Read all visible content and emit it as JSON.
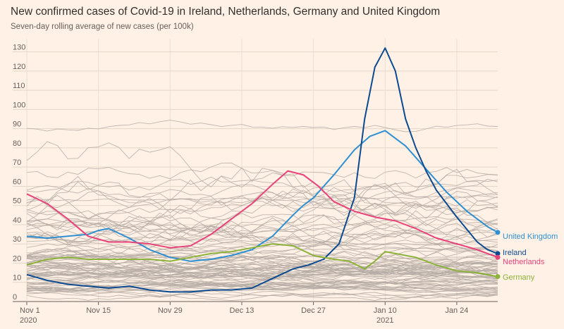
{
  "chart_data": {
    "type": "line",
    "title": "New confirmed cases of Covid-19 in Ireland, Netherlands, Germany and United Kingdom",
    "subtitle": "Seven-day rolling average of new cases (per 100k)",
    "xlabel": "",
    "ylabel": "",
    "ylim": [
      0,
      135
    ],
    "xlim": [
      0,
      92
    ],
    "y_ticks": [
      0,
      10,
      20,
      30,
      40,
      50,
      60,
      70,
      80,
      90,
      100,
      110,
      120,
      130
    ],
    "x_ticks": [
      {
        "day": 0,
        "label": "Nov 1",
        "sublabel": "2020"
      },
      {
        "day": 14,
        "label": "Nov 15",
        "sublabel": ""
      },
      {
        "day": 28,
        "label": "Nov 29",
        "sublabel": ""
      },
      {
        "day": 42,
        "label": "Dec 13",
        "sublabel": ""
      },
      {
        "day": 56,
        "label": "Dec 27",
        "sublabel": ""
      },
      {
        "day": 70,
        "label": "Jan 10",
        "sublabel": "2021"
      },
      {
        "day": 84,
        "label": "Jan 24",
        "sublabel": ""
      }
    ],
    "grid": true,
    "background_series_note": "other countries shown as grey lines",
    "series": [
      {
        "name": "United Kingdom",
        "color": "#2e8fd1",
        "x": [
          0,
          4,
          8,
          12,
          14,
          16,
          20,
          24,
          28,
          32,
          36,
          40,
          44,
          48,
          52,
          54,
          56,
          60,
          64,
          67,
          70,
          74,
          78,
          82,
          86,
          90,
          92
        ],
        "values": [
          34,
          33,
          34,
          35,
          37,
          38,
          33,
          27,
          23,
          21,
          22,
          24,
          27,
          34,
          45,
          50,
          54,
          66,
          79,
          86,
          89,
          81,
          69,
          57,
          47,
          39,
          36
        ]
      },
      {
        "name": "Ireland",
        "color": "#0d4a8f",
        "x": [
          0,
          4,
          8,
          12,
          16,
          20,
          24,
          28,
          32,
          36,
          40,
          44,
          48,
          52,
          55,
          58,
          61,
          64,
          66,
          68,
          70,
          72,
          74,
          76,
          78,
          80,
          84,
          88,
          90,
          92
        ],
        "values": [
          14,
          11,
          9,
          8,
          7,
          8,
          6,
          5,
          5,
          6,
          6,
          7,
          12,
          17,
          19,
          22,
          30,
          54,
          95,
          122,
          132,
          120,
          95,
          80,
          68,
          58,
          44,
          31,
          27,
          25
        ]
      },
      {
        "name": "Netherlands",
        "color": "#e8427a",
        "x": [
          0,
          4,
          8,
          12,
          16,
          20,
          24,
          28,
          32,
          36,
          40,
          44,
          48,
          51,
          54,
          57,
          60,
          64,
          68,
          72,
          76,
          80,
          84,
          88,
          92
        ],
        "values": [
          56,
          51,
          43,
          34,
          31,
          31,
          30,
          28,
          29,
          35,
          43,
          51,
          61,
          68,
          66,
          60,
          52,
          47,
          44,
          42,
          38,
          33,
          30,
          27,
          23
        ]
      },
      {
        "name": "Germany",
        "color": "#8cb23a",
        "x": [
          0,
          4,
          8,
          12,
          16,
          20,
          24,
          28,
          32,
          36,
          40,
          44,
          48,
          52,
          56,
          60,
          63,
          66,
          68,
          70,
          72,
          76,
          80,
          84,
          88,
          92
        ],
        "values": [
          19,
          22,
          23,
          22,
          22,
          22,
          22,
          21,
          23,
          25,
          26,
          28,
          30,
          29,
          24,
          22,
          21,
          17,
          21,
          26,
          25,
          23,
          19,
          16,
          15,
          13
        ]
      }
    ],
    "end_labels": {
      "United Kingdom": "United Kingdom",
      "Ireland": "Ireland",
      "Netherlands": "Netherlands",
      "Germany": "Germany"
    }
  }
}
